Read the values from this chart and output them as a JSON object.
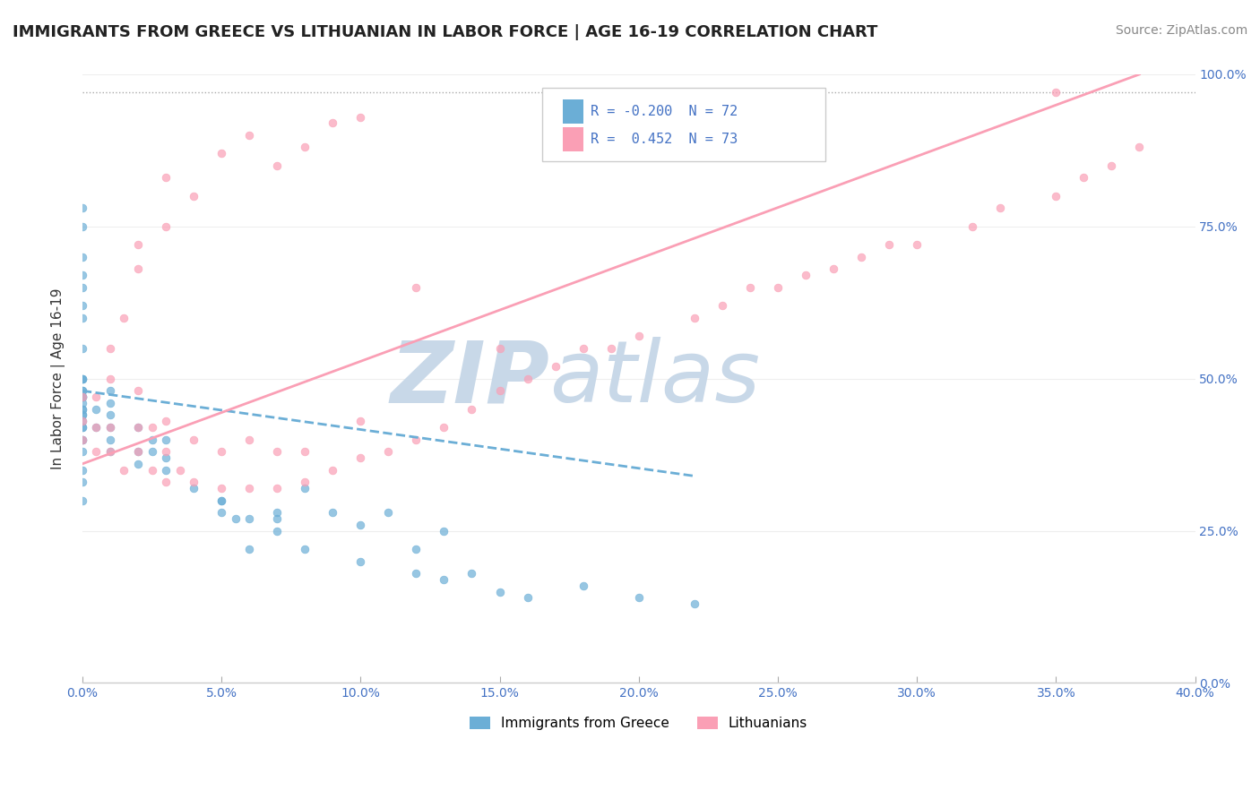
{
  "title": "IMMIGRANTS FROM GREECE VS LITHUANIAN IN LABOR FORCE | AGE 16-19 CORRELATION CHART",
  "source": "Source: ZipAtlas.com",
  "ylabel": "In Labor Force | Age 16-19",
  "xlim": [
    0.0,
    0.4
  ],
  "ylim": [
    0.0,
    1.0
  ],
  "xticks": [
    0.0,
    0.05,
    0.1,
    0.15,
    0.2,
    0.25,
    0.3,
    0.35,
    0.4
  ],
  "yticks": [
    0.0,
    0.25,
    0.5,
    0.75,
    1.0
  ],
  "ytick_labels": [
    "0.0%",
    "25.0%",
    "50.0%",
    "75.0%",
    "100.0%"
  ],
  "greece_color": "#6baed6",
  "lithuanian_color": "#fa9fb5",
  "greece_R": -0.2,
  "greece_N": 72,
  "lithuanian_R": 0.452,
  "lithuanian_N": 73,
  "legend_label_greece": "Immigrants from Greece",
  "legend_label_lithuanian": "Lithuanians",
  "watermark_zip": "ZIP",
  "watermark_atlas": "atlas",
  "background_color": "#ffffff",
  "greece_scatter_x": [
    0.0,
    0.0,
    0.0,
    0.0,
    0.0,
    0.0,
    0.0,
    0.0,
    0.0,
    0.0,
    0.0,
    0.0,
    0.0,
    0.0,
    0.0,
    0.0,
    0.0,
    0.0,
    0.0,
    0.0,
    0.0,
    0.0,
    0.0,
    0.0,
    0.0,
    0.0,
    0.0,
    0.0,
    0.0,
    0.0,
    0.005,
    0.005,
    0.01,
    0.01,
    0.01,
    0.01,
    0.01,
    0.01,
    0.02,
    0.02,
    0.02,
    0.025,
    0.025,
    0.03,
    0.03,
    0.03,
    0.04,
    0.05,
    0.05,
    0.06,
    0.07,
    0.07,
    0.08,
    0.1,
    0.12,
    0.13,
    0.14,
    0.15,
    0.16,
    0.18,
    0.2,
    0.22,
    0.05,
    0.055,
    0.06,
    0.07,
    0.08,
    0.09,
    0.1,
    0.11,
    0.12,
    0.13
  ],
  "greece_scatter_y": [
    0.4,
    0.42,
    0.4,
    0.42,
    0.43,
    0.44,
    0.44,
    0.45,
    0.45,
    0.46,
    0.47,
    0.47,
    0.47,
    0.48,
    0.48,
    0.5,
    0.5,
    0.5,
    0.55,
    0.6,
    0.62,
    0.65,
    0.67,
    0.7,
    0.75,
    0.78,
    0.33,
    0.35,
    0.38,
    0.3,
    0.42,
    0.45,
    0.38,
    0.4,
    0.42,
    0.44,
    0.46,
    0.48,
    0.36,
    0.38,
    0.42,
    0.38,
    0.4,
    0.35,
    0.37,
    0.4,
    0.32,
    0.28,
    0.3,
    0.27,
    0.25,
    0.28,
    0.22,
    0.2,
    0.18,
    0.17,
    0.18,
    0.15,
    0.14,
    0.16,
    0.14,
    0.13,
    0.3,
    0.27,
    0.22,
    0.27,
    0.32,
    0.28,
    0.26,
    0.28,
    0.22,
    0.25
  ],
  "lithuanian_scatter_x": [
    0.0,
    0.0,
    0.0,
    0.005,
    0.005,
    0.01,
    0.01,
    0.01,
    0.015,
    0.02,
    0.02,
    0.02,
    0.025,
    0.025,
    0.03,
    0.03,
    0.03,
    0.035,
    0.04,
    0.04,
    0.05,
    0.05,
    0.06,
    0.06,
    0.07,
    0.07,
    0.08,
    0.08,
    0.09,
    0.1,
    0.1,
    0.11,
    0.12,
    0.13,
    0.14,
    0.15,
    0.16,
    0.17,
    0.18,
    0.19,
    0.2,
    0.22,
    0.23,
    0.24,
    0.25,
    0.26,
    0.27,
    0.28,
    0.29,
    0.3,
    0.32,
    0.33,
    0.35,
    0.36,
    0.37,
    0.38,
    0.005,
    0.01,
    0.015,
    0.02,
    0.02,
    0.03,
    0.03,
    0.04,
    0.05,
    0.06,
    0.07,
    0.08,
    0.09,
    0.1,
    0.12,
    0.15,
    0.35
  ],
  "lithuanian_scatter_y": [
    0.4,
    0.43,
    0.47,
    0.38,
    0.42,
    0.38,
    0.42,
    0.5,
    0.35,
    0.38,
    0.42,
    0.48,
    0.35,
    0.42,
    0.33,
    0.38,
    0.43,
    0.35,
    0.33,
    0.4,
    0.32,
    0.38,
    0.32,
    0.4,
    0.32,
    0.38,
    0.33,
    0.38,
    0.35,
    0.37,
    0.43,
    0.38,
    0.4,
    0.42,
    0.45,
    0.48,
    0.5,
    0.52,
    0.55,
    0.55,
    0.57,
    0.6,
    0.62,
    0.65,
    0.65,
    0.67,
    0.68,
    0.7,
    0.72,
    0.72,
    0.75,
    0.78,
    0.8,
    0.83,
    0.85,
    0.88,
    0.47,
    0.55,
    0.6,
    0.72,
    0.68,
    0.83,
    0.75,
    0.8,
    0.87,
    0.9,
    0.85,
    0.88,
    0.92,
    0.93,
    0.65,
    0.55,
    0.97
  ],
  "greece_trend_x": [
    0.0,
    0.22
  ],
  "greece_trend_y": [
    0.48,
    0.34
  ],
  "lithuanian_trend_x": [
    0.0,
    0.38
  ],
  "lithuanian_trend_y": [
    0.36,
    1.0
  ],
  "dotted_line_y": 0.97,
  "title_fontsize": 13,
  "source_fontsize": 10,
  "axis_label_fontsize": 11,
  "tick_fontsize": 10,
  "legend_fontsize": 11,
  "watermark_color": "#c8d8e8",
  "watermark_fontsize": 70,
  "scatter_size": 40,
  "scatter_alpha": 0.7,
  "trend_linewidth": 2.0
}
